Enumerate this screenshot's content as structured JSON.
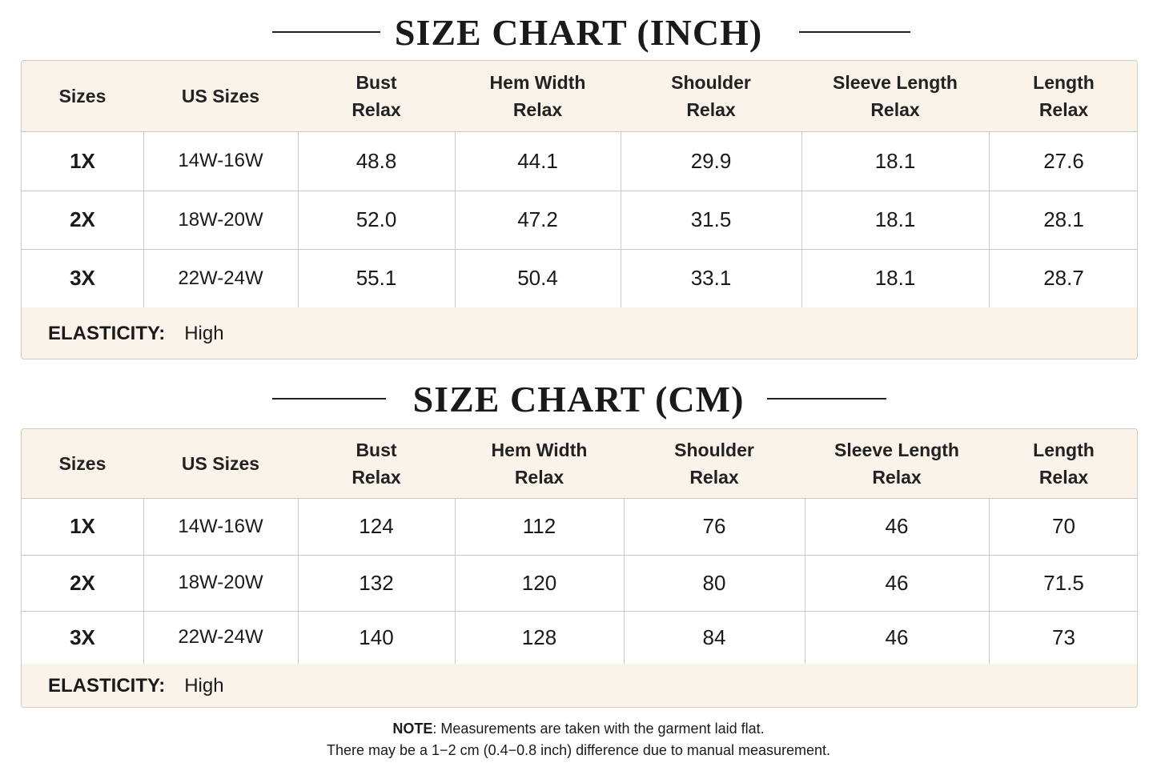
{
  "tables": [
    {
      "title": "SIZE CHART (INCH)",
      "headers": [
        [
          "Sizes"
        ],
        [
          "US Sizes"
        ],
        [
          "Bust",
          "Relax"
        ],
        [
          "Hem Width",
          "Relax"
        ],
        [
          "Shoulder",
          "Relax"
        ],
        [
          "Sleeve Length",
          "Relax"
        ],
        [
          "Length",
          "Relax"
        ]
      ],
      "rows": [
        [
          "1X",
          "14W-16W",
          "48.8",
          "44.1",
          "29.9",
          "18.1",
          "27.6"
        ],
        [
          "2X",
          "18W-20W",
          "52.0",
          "47.2",
          "31.5",
          "18.1",
          "28.1"
        ],
        [
          "3X",
          "22W-24W",
          "55.1",
          "50.4",
          "33.1",
          "18.1",
          "28.7"
        ]
      ],
      "footer": {
        "label": "ELASTICITY:",
        "value": "High"
      }
    },
    {
      "title": "SIZE CHART (CM)",
      "headers": [
        [
          "Sizes"
        ],
        [
          "US Sizes"
        ],
        [
          "Bust",
          "Relax"
        ],
        [
          "Hem Width",
          "Relax"
        ],
        [
          "Shoulder",
          "Relax"
        ],
        [
          "Sleeve Length",
          "Relax"
        ],
        [
          "Length",
          "Relax"
        ]
      ],
      "rows": [
        [
          "1X",
          "14W-16W",
          "124",
          "112",
          "76",
          "46",
          "70"
        ],
        [
          "2X",
          "18W-20W",
          "132",
          "120",
          "80",
          "46",
          "71.5"
        ],
        [
          "3X",
          "22W-24W",
          "140",
          "128",
          "84",
          "46",
          "73"
        ]
      ],
      "footer": {
        "label": "ELASTICITY:",
        "value": "High"
      }
    }
  ],
  "note": {
    "label": "NOTE",
    "text": ": Measurements are taken with the garment laid flat.",
    "line2": "There may be a 1−2 cm (0.4−0.8 inch) difference due to manual measurement."
  }
}
